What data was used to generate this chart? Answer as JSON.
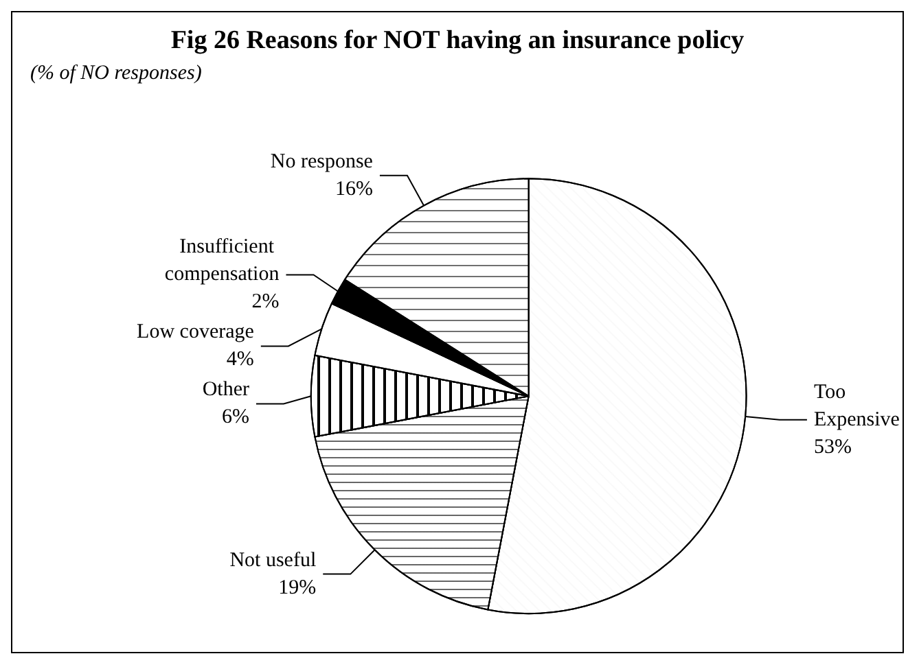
{
  "chart_data": {
    "type": "pie",
    "title": "Fig 26 Reasons for NOT having an insurance policy",
    "subtitle": "(% of NO responses)",
    "categories": [
      "Too Expensive",
      "Not useful",
      "Other",
      "Low coverage",
      "Insufficient compensation",
      "No response"
    ],
    "values": [
      53,
      19,
      6,
      4,
      2,
      16
    ],
    "value_labels": [
      "53%",
      "19%",
      "6%",
      "4%",
      "2%",
      "16%"
    ],
    "colors": [
      "#ffffff",
      "#ffffff",
      "#ffffff",
      "#ffffff",
      "#000000",
      "#ffffff"
    ],
    "legend": false
  }
}
